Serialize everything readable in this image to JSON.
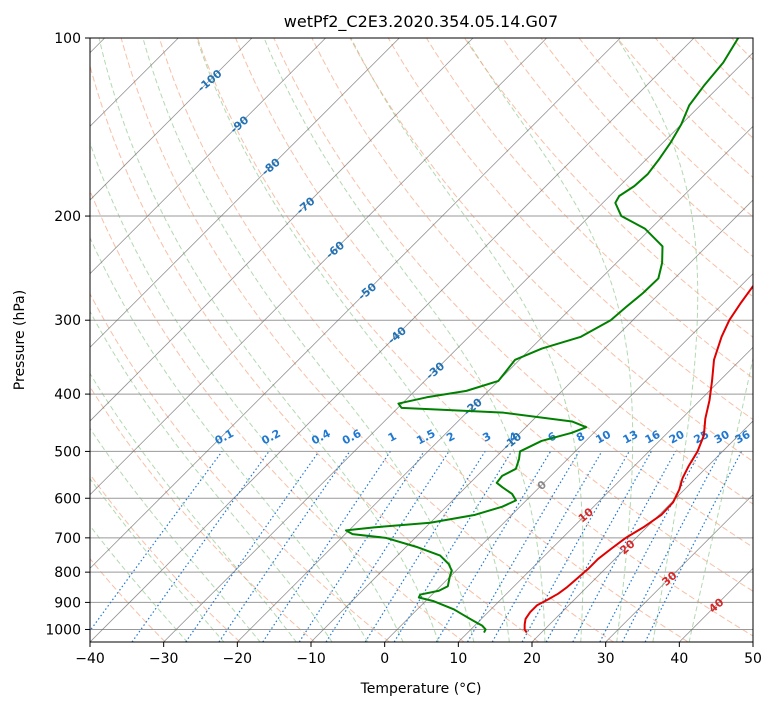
{
  "chart_data": {
    "type": "line",
    "title": "wetPf2_C2E3.2020.354.05.14.G07",
    "xlabel": "Temperature (°C)",
    "ylabel": "Pressure (hPa)",
    "xlim": [
      -40,
      50
    ],
    "ylim": [
      1050,
      100
    ],
    "y_scale": "log",
    "grid": true,
    "x_ticks": [
      "−40",
      "−30",
      "−20",
      "−10",
      "0",
      "10",
      "20",
      "30",
      "40",
      "50"
    ],
    "y_ticks": [
      "100",
      "200",
      "300",
      "400",
      "500",
      "600",
      "700",
      "800",
      "900",
      "1000"
    ],
    "series": [
      {
        "color": "#e00000",
        "points": [
          [
            1012,
            18.0
          ],
          [
            1000,
            17.3
          ],
          [
            980,
            16.6
          ],
          [
            960,
            16.0
          ],
          [
            935,
            15.7
          ],
          [
            910,
            15.7
          ],
          [
            890,
            16.4
          ],
          [
            870,
            17.0
          ],
          [
            850,
            17.3
          ],
          [
            820,
            17.5
          ],
          [
            790,
            17.7
          ],
          [
            760,
            17.7
          ],
          [
            730,
            18.1
          ],
          [
            700,
            18.6
          ],
          [
            670,
            19.6
          ],
          [
            640,
            20.3
          ],
          [
            610,
            20.2
          ],
          [
            580,
            19.3
          ],
          [
            555,
            18.2
          ],
          [
            530,
            17.4
          ],
          [
            500,
            16.6
          ],
          [
            470,
            15.3
          ],
          [
            440,
            13.2
          ],
          [
            410,
            11.3
          ],
          [
            380,
            9.0
          ],
          [
            350,
            6.4
          ],
          [
            320,
            4.3
          ],
          [
            300,
            3.1
          ],
          [
            280,
            2.3
          ],
          [
            260,
            1.6
          ],
          [
            240,
            0.3
          ],
          [
            220,
            -2.2
          ],
          [
            200,
            -5.8
          ],
          [
            180,
            -9.5
          ],
          [
            160,
            -13.8
          ],
          [
            140,
            -18.8
          ],
          [
            130,
            -20.8
          ],
          [
            120,
            -20.3
          ],
          [
            110,
            -18.4
          ],
          [
            100,
            -16.4
          ]
        ]
      },
      {
        "color": "#008000",
        "points": [
          [
            1012,
            12.2
          ],
          [
            1000,
            12.0
          ],
          [
            985,
            11.0
          ],
          [
            965,
            9.0
          ],
          [
            945,
            7.0
          ],
          [
            925,
            5.0
          ],
          [
            910,
            3.0
          ],
          [
            895,
            1.0
          ],
          [
            883,
            -1.4
          ],
          [
            873,
            -1.6
          ],
          [
            860,
            0.4
          ],
          [
            845,
            1.0
          ],
          [
            830,
            0.5
          ],
          [
            815,
            0.0
          ],
          [
            795,
            -0.6
          ],
          [
            775,
            -1.9
          ],
          [
            750,
            -4.2
          ],
          [
            725,
            -8.6
          ],
          [
            700,
            -14.0
          ],
          [
            690,
            -19.0
          ],
          [
            680,
            -20.4
          ],
          [
            672,
            -17.0
          ],
          [
            660,
            -10.0
          ],
          [
            640,
            -5.0
          ],
          [
            620,
            -2.4
          ],
          [
            605,
            -1.4
          ],
          [
            590,
            -2.8
          ],
          [
            575,
            -5.0
          ],
          [
            565,
            -6.4
          ],
          [
            550,
            -6.6
          ],
          [
            535,
            -5.7
          ],
          [
            515,
            -6.6
          ],
          [
            500,
            -7.5
          ],
          [
            480,
            -6.0
          ],
          [
            465,
            -3.0
          ],
          [
            455,
            -1.8
          ],
          [
            445,
            -4.5
          ],
          [
            430,
            -15.0
          ],
          [
            422,
            -29.5
          ],
          [
            415,
            -30.5
          ],
          [
            405,
            -27.5
          ],
          [
            395,
            -23.0
          ],
          [
            380,
            -20.0
          ],
          [
            365,
            -20.3
          ],
          [
            350,
            -20.6
          ],
          [
            335,
            -18.5
          ],
          [
            320,
            -14.8
          ],
          [
            300,
            -13.0
          ],
          [
            285,
            -12.7
          ],
          [
            270,
            -12.3
          ],
          [
            255,
            -12.2
          ],
          [
            240,
            -13.8
          ],
          [
            225,
            -16.0
          ],
          [
            210,
            -20.8
          ],
          [
            200,
            -25.7
          ],
          [
            190,
            -28.3
          ],
          [
            185,
            -28.7
          ],
          [
            178,
            -28.0
          ],
          [
            170,
            -27.8
          ],
          [
            160,
            -28.3
          ],
          [
            150,
            -29.0
          ],
          [
            140,
            -30.0
          ],
          [
            130,
            -31.5
          ],
          [
            120,
            -32.2
          ],
          [
            110,
            -32.7
          ],
          [
            100,
            -34.0
          ]
        ]
      }
    ],
    "dry_adiabat_labels": [
      "-100",
      "-90",
      "-80",
      "-70",
      "-60",
      "-50",
      "-40",
      "-30",
      "-20",
      "-10",
      "0",
      "10",
      "20",
      "30",
      "40"
    ],
    "mixing_ratio_labels": [
      "0.1",
      "0.2",
      "0.4",
      "0.6",
      "1",
      "1.5",
      "2",
      "3",
      "4",
      "6",
      "8",
      "10",
      "13",
      "16",
      "20",
      "25",
      "30",
      "36"
    ],
    "colors": {
      "dry_adiabat": "#f4a582",
      "moist_adiabat": "#7fbf7b",
      "mixing_ratio": "#1f78d1",
      "isotherm": "#666666",
      "isobar": "#999999",
      "dry_label": "#2171b5",
      "warm_label": "#d62728",
      "zero_label": "#888888"
    }
  }
}
